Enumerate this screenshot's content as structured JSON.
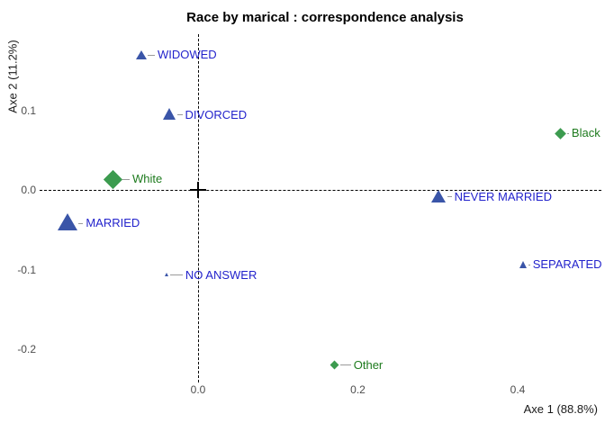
{
  "title": "Race by marical : correspondence analysis",
  "chart_data": {
    "type": "scatter",
    "title": "Race by marical : correspondence analysis",
    "xlabel": "Axe 1 (88.8%)",
    "ylabel": "Axe 2 (11.2%)",
    "xlim": [
      -0.2,
      0.51
    ],
    "ylim": [
      -0.25,
      0.2
    ],
    "grid": false,
    "origin_cross": true,
    "dashed_axes_through_origin": true,
    "xticks": [
      {
        "label": "0.0",
        "value": 0.0
      },
      {
        "label": "0.2",
        "value": 0.2
      },
      {
        "label": "0.4",
        "value": 0.4
      }
    ],
    "yticks": [
      {
        "label": "0.1",
        "value": 0.1
      },
      {
        "label": "0.0",
        "value": 0.0
      },
      {
        "label": "-0.1",
        "value": -0.1
      },
      {
        "label": "-0.2",
        "value": -0.2
      }
    ],
    "series": [
      {
        "name": "marital-status",
        "marker": "triangle",
        "marker_color": "#3A55A8",
        "label_color": "#2323CC",
        "points": [
          {
            "label": "WIDOWED",
            "x": -0.071,
            "y": 0.169,
            "size": 12,
            "connector": 8
          },
          {
            "label": "DIVORCED",
            "x": -0.036,
            "y": 0.094,
            "size": 15,
            "connector": 6
          },
          {
            "label": "MARRIED",
            "x": -0.163,
            "y": -0.042,
            "size": 22,
            "connector": 5
          },
          {
            "label": "NEVER MARRIED",
            "x": 0.301,
            "y": -0.009,
            "size": 17,
            "connector": 5
          },
          {
            "label": "SEPARATED",
            "x": 0.407,
            "y": -0.094,
            "size": 9,
            "connector": 2
          },
          {
            "label": "NO ANSWER",
            "x": -0.039,
            "y": -0.107,
            "size": 5,
            "connector": 14
          }
        ]
      },
      {
        "name": "race",
        "marker": "diamond",
        "marker_color": "#3C9B4F",
        "label_color": "#1E7B1E",
        "points": [
          {
            "label": "White",
            "x": -0.107,
            "y": 0.013,
            "size": 20,
            "connector": 8
          },
          {
            "label": "Black",
            "x": 0.454,
            "y": 0.071,
            "size": 12,
            "connector": 2
          },
          {
            "label": "Other",
            "x": 0.171,
            "y": -0.22,
            "size": 10,
            "connector": 12
          }
        ]
      }
    ],
    "colors": {
      "triangle_fill": "#3A55A8",
      "diamond_fill": "#3C9B4F",
      "marital_label_text": "#2323CC",
      "race_label_text": "#1E7B1E",
      "tick_text": "#4d4d4d",
      "axis_text": "#1a1a1a",
      "dashed_line": "#000000",
      "connector_line": "#9a9a9a"
    }
  }
}
